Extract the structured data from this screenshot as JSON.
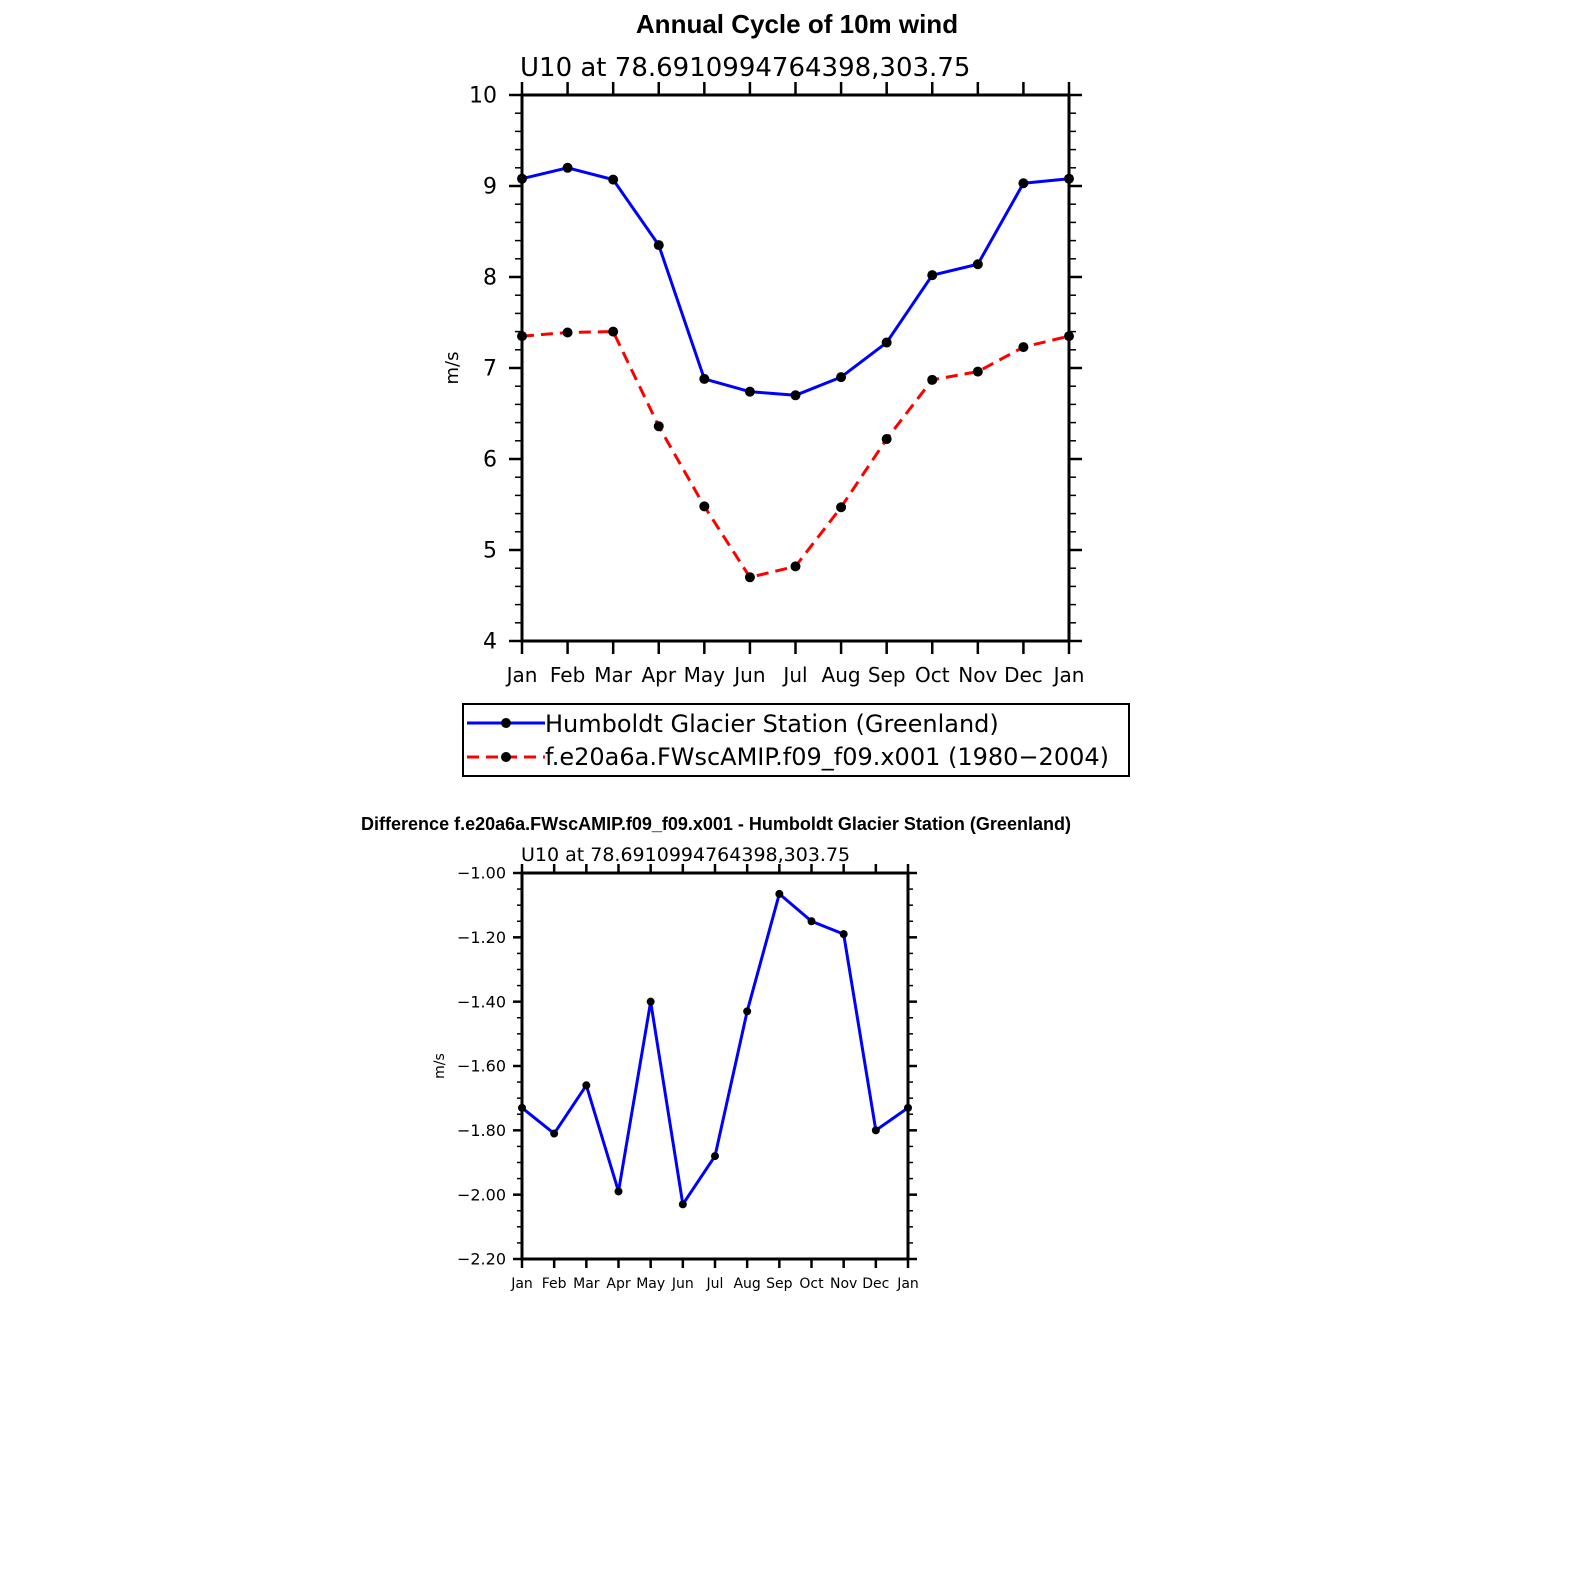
{
  "chart_data": [
    {
      "type": "line",
      "title": "Annual Cycle of 10m wind",
      "subtitle": "U10 at 78.6910994764398,303.75",
      "ylabel": "m/s",
      "xlabel": "",
      "categories": [
        "Jan",
        "Feb",
        "Mar",
        "Apr",
        "May",
        "Jun",
        "Jul",
        "Aug",
        "Sep",
        "Oct",
        "Nov",
        "Dec",
        "Jan"
      ],
      "ylim": [
        4,
        10
      ],
      "yticks": [
        "4",
        "5",
        "6",
        "7",
        "8",
        "9",
        "10"
      ],
      "grid": false,
      "legend_position": "bottom",
      "series": [
        {
          "name": "Humboldt Glacier Station (Greenland)",
          "color": "#0000ff",
          "dash": "solid",
          "values": [
            9.08,
            9.2,
            9.07,
            8.35,
            6.88,
            6.74,
            6.7,
            6.9,
            7.28,
            8.02,
            8.14,
            9.03,
            9.08
          ]
        },
        {
          "name": "f.e20a6a.FWscAMIP.f09_f09.x001 (1980−2004)",
          "color": "#ff0000",
          "dash": "dashed",
          "values": [
            7.35,
            7.39,
            7.4,
            6.36,
            5.48,
            4.7,
            4.82,
            5.47,
            6.22,
            6.87,
            6.96,
            7.23,
            7.35
          ]
        }
      ]
    },
    {
      "type": "line",
      "title": "Difference f.e20a6a.FWscAMIP.f09_f09.x001 - Humboldt Glacier Station (Greenland)",
      "subtitle": "U10 at 78.6910994764398,303.75",
      "ylabel": "m/s",
      "xlabel": "",
      "categories": [
        "Jan",
        "Feb",
        "Mar",
        "Apr",
        "May",
        "Jun",
        "Jul",
        "Aug",
        "Sep",
        "Oct",
        "Nov",
        "Dec",
        "Jan"
      ],
      "ylim": [
        -2.2,
        -1.0
      ],
      "yticks": [
        "−2.20",
        "−2.00",
        "−1.80",
        "−1.60",
        "−1.40",
        "−1.20",
        "−1.00"
      ],
      "grid": false,
      "series": [
        {
          "color": "#0000ff",
          "dash": "solid",
          "values": [
            -1.73,
            -1.81,
            -1.66,
            -1.99,
            -1.4,
            -2.03,
            -1.88,
            -1.43,
            -1.065,
            -1.15,
            -1.19,
            -1.8,
            -1.73
          ]
        }
      ]
    }
  ]
}
